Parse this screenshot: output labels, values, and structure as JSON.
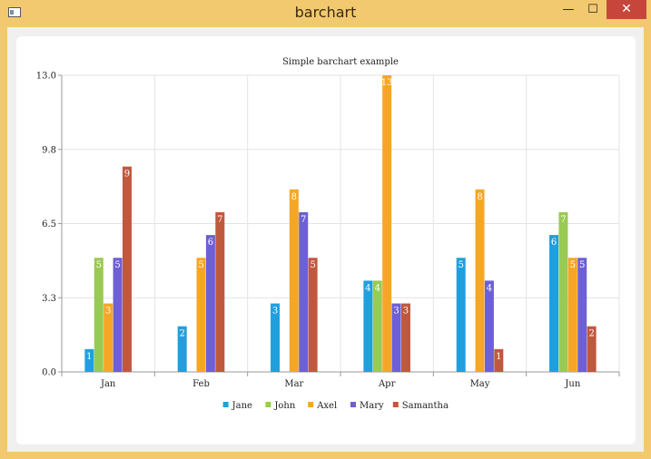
{
  "window": {
    "title": "barchart",
    "minimize_glyph": "—",
    "maximize_glyph": "☐",
    "close_glyph": "✕"
  },
  "chart_data": {
    "type": "bar",
    "title": "Simple barchart example",
    "xlabel": "",
    "ylabel": "",
    "categories": [
      "Jan",
      "Feb",
      "Mar",
      "Apr",
      "May",
      "Jun"
    ],
    "yticks": [
      "0.0",
      "3.3",
      "6.5",
      "9.8",
      "13.0"
    ],
    "ylim": [
      0,
      13
    ],
    "grid": true,
    "legend_position": "bottom",
    "show_data_labels": true,
    "series": [
      {
        "name": "Jane",
        "color": "#209fdf",
        "values": [
          1,
          2,
          3,
          4,
          5,
          6
        ]
      },
      {
        "name": "John",
        "color": "#99ca53",
        "values": [
          5,
          0,
          0,
          4,
          0,
          7
        ]
      },
      {
        "name": "Axel",
        "color": "#f6a625",
        "values": [
          3,
          5,
          8,
          13,
          8,
          5
        ]
      },
      {
        "name": "Mary",
        "color": "#6d5fd5",
        "values": [
          5,
          6,
          7,
          3,
          4,
          5
        ]
      },
      {
        "name": "Samantha",
        "color": "#bf593e",
        "values": [
          9,
          7,
          5,
          3,
          1,
          2
        ]
      }
    ]
  }
}
